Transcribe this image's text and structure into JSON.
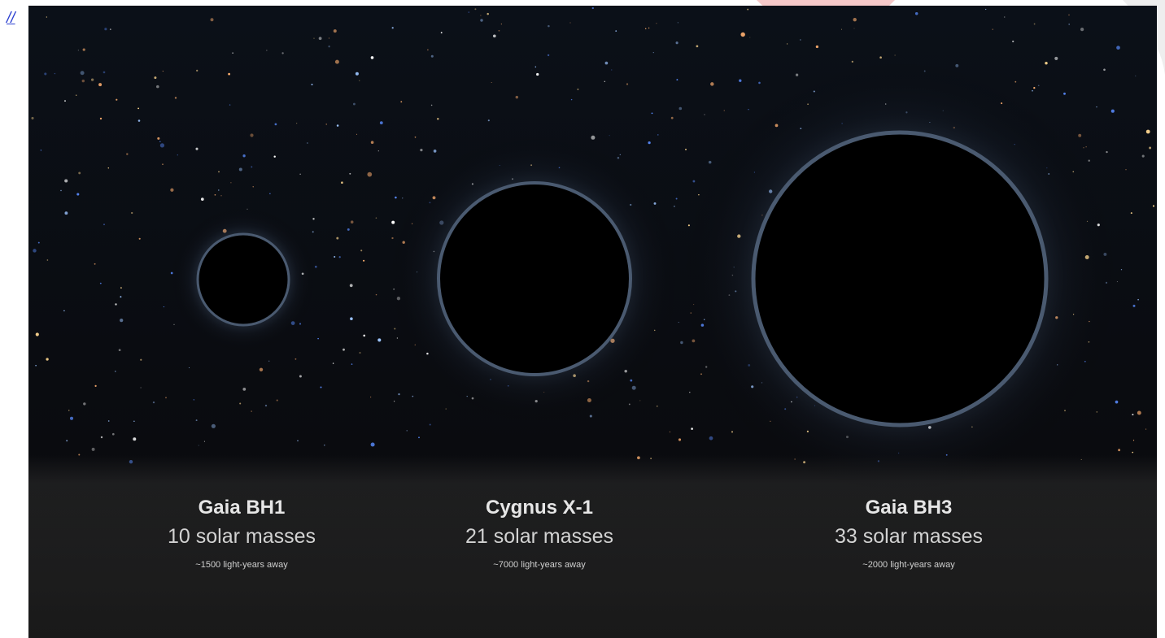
{
  "link": {
    "text": "//"
  },
  "black_holes": [
    {
      "name": "Gaia BH1",
      "mass": "10 solar masses",
      "distance": "~1500 light-years away"
    },
    {
      "name": "Cygnus X-1",
      "mass": "21 solar masses",
      "distance": "~7000 light-years away"
    },
    {
      "name": "Gaia BH3",
      "mass": "33 solar masses",
      "distance": "~2000 light-years away"
    }
  ]
}
